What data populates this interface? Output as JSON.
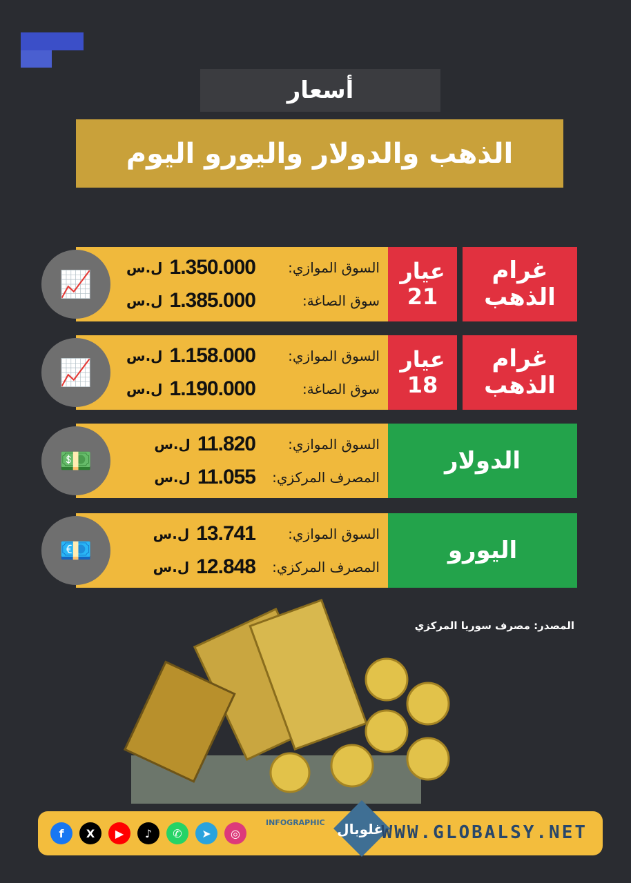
{
  "header": {
    "subtitle": "أسعار",
    "title": "الذهب والدولار واليورو اليوم"
  },
  "brand_color": "#3b4fc8",
  "rows": [
    {
      "type": "gold",
      "name": "غرام الذهب",
      "karat_label": "عيار",
      "karat": "21",
      "icon": "gold-bars-red-trend-icon",
      "lines": [
        {
          "label": "السوق الموازي:",
          "value": "1.350.000",
          "currency": "ل.س"
        },
        {
          "label": "سوق الصاغة:",
          "value": "1.385.000",
          "currency": "ل.س"
        }
      ]
    },
    {
      "type": "gold",
      "name": "غرام الذهب",
      "karat_label": "عيار",
      "karat": "18",
      "icon": "gold-bar-blue-trend-icon",
      "lines": [
        {
          "label": "السوق الموازي:",
          "value": "1.158.000",
          "currency": "ل.س"
        },
        {
          "label": "سوق الصاغة:",
          "value": "1.190.000",
          "currency": "ل.س"
        }
      ]
    },
    {
      "type": "currency",
      "name": "الدولار",
      "icon": "dollar-banknote-icon",
      "lines": [
        {
          "label": "السوق الموازي:",
          "value": "11.820",
          "currency": "ل.س"
        },
        {
          "label": "المصرف المركزي:",
          "value": "11.055",
          "currency": "ل.س"
        }
      ]
    },
    {
      "type": "currency",
      "name": "اليورو",
      "icon": "euro-banknote-icon",
      "lines": [
        {
          "label": "السوق الموازي:",
          "value": "13.741",
          "currency": "ل.س"
        },
        {
          "label": "المصرف المركزي:",
          "value": "12.848",
          "currency": "ل.س"
        }
      ]
    }
  ],
  "source": "المصدر: مصرف سوريا المركزي",
  "footer": {
    "infographic": "INFOGRAPHIC",
    "logo": "غلوبال",
    "url": "WWW.GLOBALSY.NET",
    "social": [
      {
        "name": "facebook",
        "glyph": "f",
        "color": "#1877f2"
      },
      {
        "name": "x",
        "glyph": "X",
        "color": "#000000"
      },
      {
        "name": "youtube",
        "glyph": "▶",
        "color": "#ff0000"
      },
      {
        "name": "tiktok",
        "glyph": "♪",
        "color": "#000000"
      },
      {
        "name": "whatsapp",
        "glyph": "✆",
        "color": "#25d366"
      },
      {
        "name": "telegram",
        "glyph": "➤",
        "color": "#2aa3dd"
      },
      {
        "name": "instagram",
        "glyph": "◎",
        "color": "#dd3a7a"
      }
    ]
  }
}
